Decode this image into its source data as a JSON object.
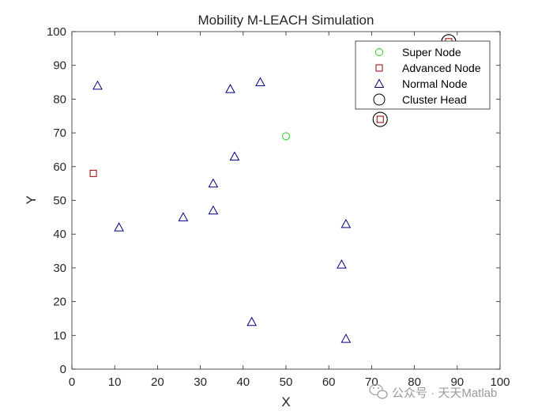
{
  "chart_data": {
    "type": "scatter",
    "title": "Mobility M-LEACH Simulation",
    "xlabel": "X",
    "ylabel": "Y",
    "xlim": [
      0,
      100
    ],
    "ylim": [
      0,
      100
    ],
    "xticks": [
      "0",
      "10",
      "20",
      "30",
      "40",
      "50",
      "60",
      "70",
      "80",
      "90",
      "100"
    ],
    "yticks": [
      "0",
      "10",
      "20",
      "30",
      "40",
      "50",
      "60",
      "70",
      "80",
      "90",
      "100"
    ],
    "grid": false,
    "legend_position": "top-right",
    "series": [
      {
        "name": "Super Node",
        "marker": "circle",
        "color": "#22cc22",
        "points": [
          {
            "x": 50,
            "y": 69
          }
        ]
      },
      {
        "name": "Advanced Node",
        "marker": "square",
        "color": "#990000",
        "points": [
          {
            "x": 5,
            "y": 58
          },
          {
            "x": 72,
            "y": 74
          },
          {
            "x": 88,
            "y": 97
          }
        ]
      },
      {
        "name": "Normal Node",
        "marker": "triangle",
        "color": "#000080",
        "points": [
          {
            "x": 6,
            "y": 84
          },
          {
            "x": 11,
            "y": 42
          },
          {
            "x": 26,
            "y": 45
          },
          {
            "x": 33,
            "y": 55
          },
          {
            "x": 33,
            "y": 47
          },
          {
            "x": 37,
            "y": 83
          },
          {
            "x": 38,
            "y": 63
          },
          {
            "x": 42,
            "y": 14
          },
          {
            "x": 44,
            "y": 85
          },
          {
            "x": 63,
            "y": 31
          },
          {
            "x": 64,
            "y": 43
          },
          {
            "x": 64,
            "y": 9
          }
        ]
      },
      {
        "name": "Cluster Head",
        "marker": "big-circle",
        "color": "#000000",
        "points": [
          {
            "x": 72,
            "y": 74
          },
          {
            "x": 88,
            "y": 97
          }
        ]
      }
    ]
  },
  "watermark": {
    "icon": "wechat-icon",
    "text": "公众号 · 天天Matlab",
    "color": "#9a9a9a"
  }
}
